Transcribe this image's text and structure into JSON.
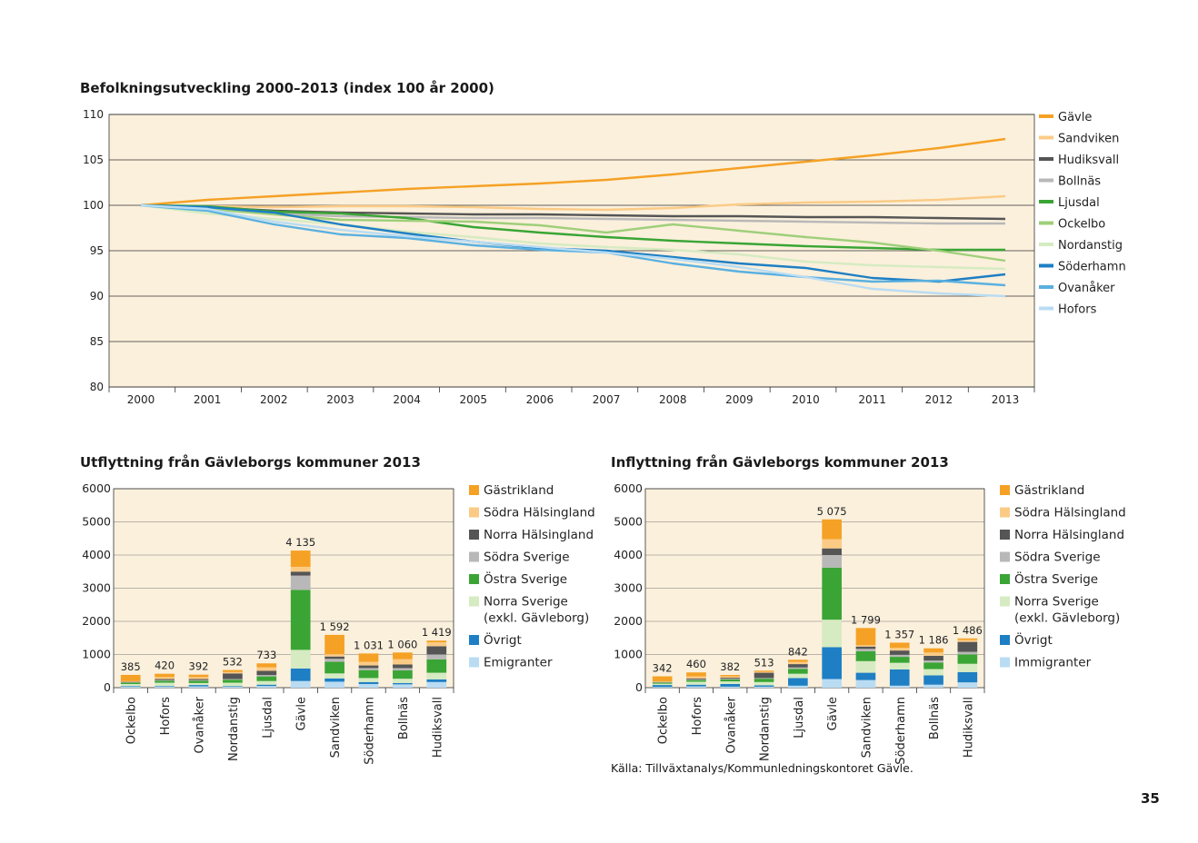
{
  "page_number": "35",
  "source_note": "Källa: Tillväxtanalys/Kommunledningskontoret Gävle.",
  "chart_data": [
    {
      "type": "line",
      "title": "Befolkningsutveckling 2000–2013 (index 100 år 2000)",
      "x": [
        "2000",
        "2001",
        "2002",
        "2003",
        "2004",
        "2005",
        "2006",
        "2007",
        "2008",
        "2009",
        "2010",
        "2011",
        "2012",
        "2013"
      ],
      "ylim": [
        80,
        110
      ],
      "yticks": [
        80,
        85,
        90,
        95,
        100,
        105,
        110
      ],
      "grid": true,
      "background": "#fbf0dc",
      "legend_position": "right",
      "series": [
        {
          "name": "Gävle",
          "color": "#f5a125",
          "values": [
            100,
            100.6,
            101.0,
            101.4,
            101.8,
            102.1,
            102.4,
            102.8,
            103.4,
            104.1,
            104.8,
            105.5,
            106.3,
            107.3
          ]
        },
        {
          "name": "Sandviken",
          "color": "#fbcb86",
          "values": [
            100,
            99.9,
            99.8,
            99.9,
            99.9,
            99.8,
            99.6,
            99.5,
            99.7,
            100.1,
            100.3,
            100.4,
            100.6,
            101.0
          ]
        },
        {
          "name": "Hudiksvall",
          "color": "#555555",
          "values": [
            100,
            99.8,
            99.4,
            99.2,
            99.1,
            99.0,
            99.0,
            98.9,
            98.8,
            98.8,
            98.7,
            98.7,
            98.6,
            98.5
          ]
        },
        {
          "name": "Bollnäs",
          "color": "#b8b8b8",
          "values": [
            100,
            99.6,
            99.1,
            98.8,
            98.7,
            98.6,
            98.6,
            98.5,
            98.4,
            98.3,
            98.2,
            98.1,
            98.0,
            98.0
          ]
        },
        {
          "name": "Ljusdal",
          "color": "#3aa535",
          "values": [
            100,
            99.9,
            99.3,
            99.1,
            98.6,
            97.6,
            97.0,
            96.5,
            96.1,
            95.8,
            95.5,
            95.3,
            95.1,
            95.1
          ]
        },
        {
          "name": "Ockelbo",
          "color": "#9fcf7a",
          "values": [
            100,
            99.6,
            99.0,
            98.4,
            98.3,
            98.2,
            97.8,
            97.0,
            97.9,
            97.2,
            96.5,
            95.9,
            95.0,
            93.9
          ]
        },
        {
          "name": "Nordanstig",
          "color": "#d6ebc2",
          "values": [
            100,
            99.1,
            98.5,
            97.9,
            97.1,
            96.5,
            95.8,
            95.4,
            95.1,
            94.6,
            93.8,
            93.4,
            93.2,
            93.0
          ]
        },
        {
          "name": "Söderhamn",
          "color": "#1e7fc4",
          "values": [
            100,
            99.8,
            99.2,
            97.9,
            96.9,
            96.0,
            95.3,
            95.0,
            94.3,
            93.6,
            93.1,
            92.0,
            91.6,
            92.4
          ]
        },
        {
          "name": "Ovanåker",
          "color": "#5ab0e0",
          "values": [
            100,
            99.4,
            97.9,
            96.8,
            96.4,
            95.6,
            95.1,
            94.8,
            93.6,
            92.7,
            92.1,
            91.6,
            91.7,
            91.2
          ]
        },
        {
          "name": "Hofors",
          "color": "#b9dcf3",
          "values": [
            100,
            99.6,
            98.2,
            97.3,
            96.6,
            96.0,
            95.4,
            94.8,
            94.1,
            93.2,
            92.1,
            90.8,
            90.3,
            90.0
          ]
        }
      ]
    },
    {
      "type": "bar",
      "stacked": true,
      "title": "Utflyttning från Gävleborgs kommuner 2013",
      "categories": [
        "Ockelbo",
        "Hofors",
        "Ovanåker",
        "Nordanstig",
        "Ljusdal",
        "Gävle",
        "Sandviken",
        "Söderhamn",
        "Bollnäs",
        "Hudiksvall"
      ],
      "totals": [
        385,
        420,
        392,
        532,
        733,
        4135,
        1592,
        1031,
        1060,
        1419
      ],
      "total_labels": [
        "385",
        "420",
        "392",
        "532",
        "733",
        "4 135",
        "1 592",
        "1 031",
        "1 060",
        "1 419"
      ],
      "ylim": [
        0,
        6000
      ],
      "yticks": [
        0,
        1000,
        2000,
        3000,
        4000,
        5000,
        6000
      ],
      "background": "#fbf0dc",
      "legend_position": "right",
      "series": [
        {
          "name": "Emigranter",
          "color": "#b9dcf3",
          "values": [
            30,
            30,
            40,
            30,
            50,
            200,
            180,
            110,
            100,
            170
          ]
        },
        {
          "name": "Övrigt",
          "color": "#1e7fc4",
          "values": [
            20,
            20,
            40,
            20,
            40,
            380,
            100,
            60,
            40,
            80
          ]
        },
        {
          "name": "Norra Sverige\n(exkl. Gävleborg)",
          "color": "#d6ebc2",
          "values": [
            60,
            100,
            60,
            100,
            110,
            560,
            150,
            120,
            130,
            200
          ]
        },
        {
          "name": "Östra Sverige",
          "color": "#3aa535",
          "values": [
            40,
            60,
            70,
            90,
            140,
            1810,
            350,
            240,
            250,
            400
          ]
        },
        {
          "name": "Södra Sverige",
          "color": "#b8b8b8",
          "values": [
            10,
            20,
            20,
            20,
            40,
            430,
            90,
            60,
            70,
            150
          ]
        },
        {
          "name": "Norra Hälsingland",
          "color": "#555555",
          "values": [
            15,
            30,
            30,
            170,
            130,
            120,
            70,
            80,
            110,
            250
          ]
        },
        {
          "name": "Södra Hälsingland",
          "color": "#fbcb86",
          "values": [
            20,
            60,
            60,
            40,
            103,
            145,
            70,
            111,
            160,
            119
          ]
        },
        {
          "name": "Gästrikland",
          "color": "#f5a125",
          "values": [
            190,
            100,
            72,
            62,
            120,
            490,
            582,
            250,
            200,
            50
          ]
        }
      ]
    },
    {
      "type": "bar",
      "stacked": true,
      "title": "Inflyttning från Gävleborgs kommuner 2013",
      "categories": [
        "Ockelbo",
        "Hofors",
        "Ovanåker",
        "Nordanstig",
        "Ljusdal",
        "Gävle",
        "Sandviken",
        "Söderhamn",
        "Bollnäs",
        "Hudiksvall"
      ],
      "totals": [
        342,
        460,
        382,
        513,
        842,
        5075,
        1799,
        1357,
        1186,
        1486
      ],
      "total_labels": [
        "342",
        "460",
        "382",
        "513",
        "842",
        "5 075",
        "1 799",
        "1 357",
        "1 186",
        "1 486"
      ],
      "ylim": [
        0,
        6000
      ],
      "yticks": [
        0,
        1000,
        2000,
        3000,
        4000,
        5000,
        6000
      ],
      "background": "#fbf0dc",
      "legend_position": "right",
      "series": [
        {
          "name": "Immigranter",
          "color": "#b9dcf3",
          "values": [
            20,
            40,
            30,
            30,
            60,
            260,
            230,
            60,
            90,
            160
          ]
        },
        {
          "name": "Övrigt",
          "color": "#1e7fc4",
          "values": [
            60,
            50,
            80,
            40,
            230,
            960,
            220,
            490,
            280,
            310
          ]
        },
        {
          "name": "Norra Sverige\n(exkl. Gävleborg)",
          "color": "#d6ebc2",
          "values": [
            40,
            90,
            80,
            100,
            130,
            830,
            350,
            200,
            190,
            250
          ]
        },
        {
          "name": "Östra Sverige",
          "color": "#3aa535",
          "values": [
            30,
            50,
            60,
            100,
            150,
            1570,
            300,
            180,
            200,
            280
          ]
        },
        {
          "name": "Södra Sverige",
          "color": "#b8b8b8",
          "values": [
            10,
            20,
            20,
            20,
            40,
            380,
            70,
            60,
            60,
            80
          ]
        },
        {
          "name": "Norra Hälsingland",
          "color": "#555555",
          "values": [
            12,
            30,
            30,
            160,
            100,
            200,
            70,
            130,
            140,
            300
          ]
        },
        {
          "name": "Södra Hälsingland",
          "color": "#fbcb86",
          "values": [
            20,
            60,
            40,
            30,
            70,
            280,
            40,
            80,
            100,
            60
          ]
        },
        {
          "name": "Gästrikland",
          "color": "#f5a125",
          "values": [
            150,
            120,
            42,
            33,
            62,
            595,
            519,
            157,
            126,
            46
          ]
        }
      ]
    }
  ]
}
